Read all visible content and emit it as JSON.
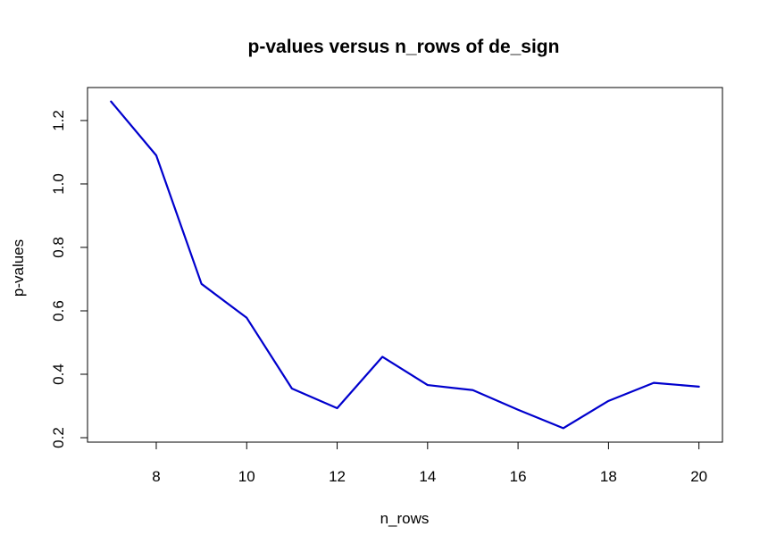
{
  "chart_data": {
    "type": "line",
    "title": "p-values versus n_rows of de_sign",
    "xlabel": "n_rows",
    "ylabel": "p-values",
    "x": [
      7,
      8,
      9,
      10,
      11,
      12,
      13,
      14,
      15,
      16,
      17,
      18,
      19,
      20
    ],
    "series": [
      {
        "values": [
          1.26,
          1.09,
          0.685,
          0.578,
          0.355,
          0.293,
          0.455,
          0.366,
          0.35,
          0.288,
          0.23,
          0.316,
          0.373,
          0.361
        ]
      }
    ],
    "xlim": [
      6.48,
      20.52
    ],
    "ylim": [
      0.186,
      1.304
    ],
    "x_ticks": [
      8,
      10,
      12,
      14,
      16,
      18,
      20
    ],
    "y_ticks": [
      0.2,
      0.4,
      0.6,
      0.8,
      1.0,
      1.2
    ],
    "x_tick_labels": [
      "8",
      "10",
      "12",
      "14",
      "16",
      "18",
      "20"
    ],
    "y_tick_labels": [
      "0.2",
      "0.4",
      "0.6",
      "0.8",
      "1.0",
      "1.2"
    ],
    "grid": false,
    "line_color": "#0000CD"
  }
}
